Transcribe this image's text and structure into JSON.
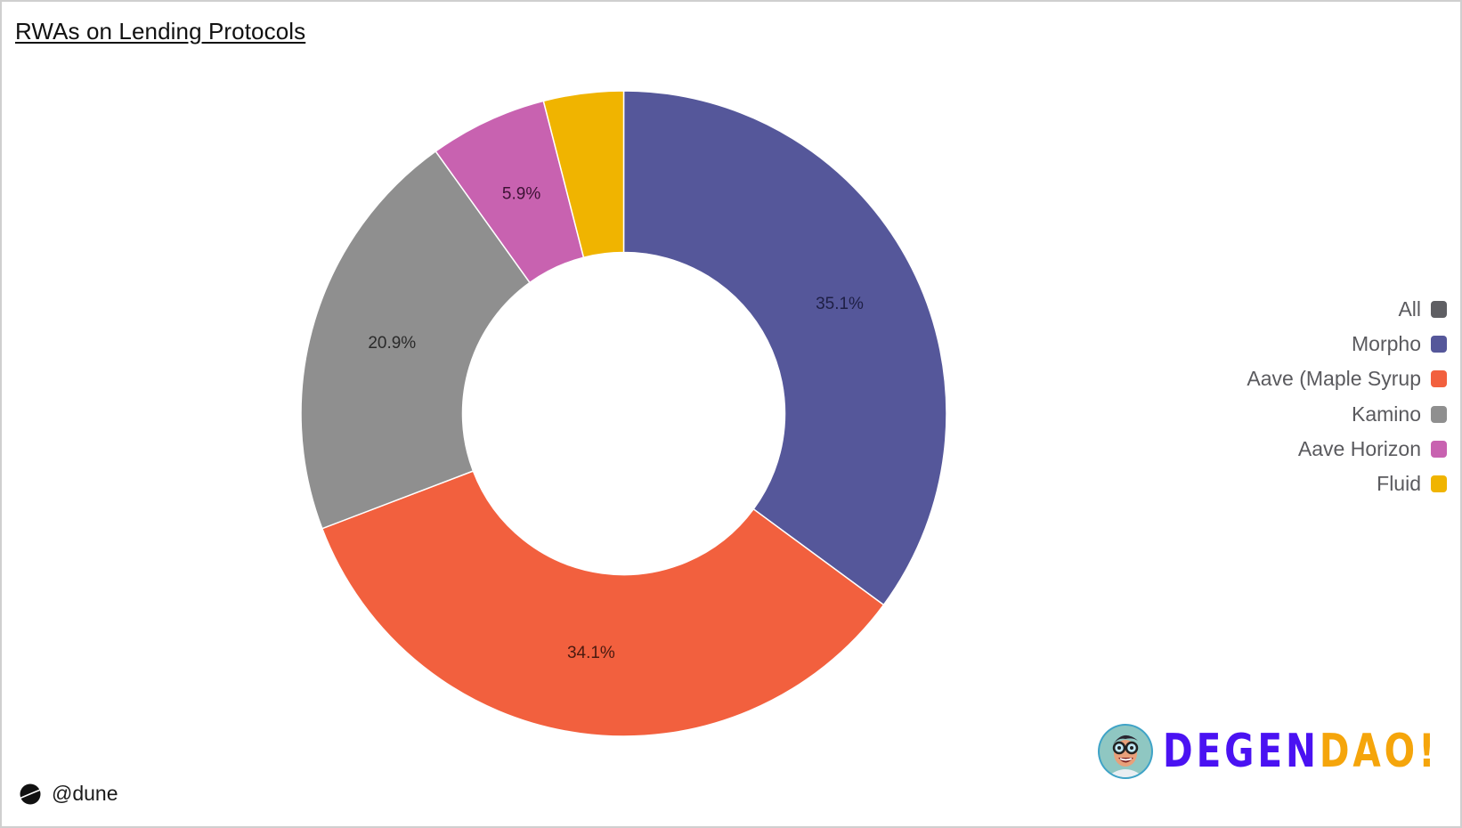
{
  "title": "RWAs on Lending Protocols",
  "footer": {
    "handle": "@dune"
  },
  "branding": {
    "part1": "DEGEN",
    "part2": "DAO!"
  },
  "legend": [
    {
      "label": "All",
      "color": "#5f5f63"
    },
    {
      "label": "Morpho",
      "color": "#55579a"
    },
    {
      "label": "Aave (Maple Syrup",
      "color": "#f2603e"
    },
    {
      "label": "Kamino",
      "color": "#8f8f8f"
    },
    {
      "label": "Aave Horizon",
      "color": "#c862b0"
    },
    {
      "label": "Fluid",
      "color": "#f0b400"
    }
  ],
  "chart_data": {
    "type": "pie",
    "subtype": "donut",
    "title": "RWAs on Lending Protocols",
    "categories": [
      "Morpho",
      "Aave (Maple Syrup",
      "Kamino",
      "Aave Horizon",
      "Fluid"
    ],
    "values": [
      35.1,
      34.1,
      20.9,
      5.9,
      4.0
    ],
    "labels_shown": [
      "35.1%",
      "34.1%",
      "20.9%",
      "5.9%",
      ""
    ],
    "colors": [
      "#55579a",
      "#f2603e",
      "#8f8f8f",
      "#c862b0",
      "#f0b400"
    ],
    "label_colors": [
      "#1e1f45",
      "#4a1a10",
      "#2a2a2a",
      "#3d1235",
      "#3d2d00"
    ],
    "legend_entries": [
      "All",
      "Morpho",
      "Aave (Maple Syrup",
      "Kamino",
      "Aave Horizon",
      "Fluid"
    ],
    "legend_position": "right",
    "start_angle_deg": 0,
    "direction": "clockwise",
    "unit": "%"
  }
}
